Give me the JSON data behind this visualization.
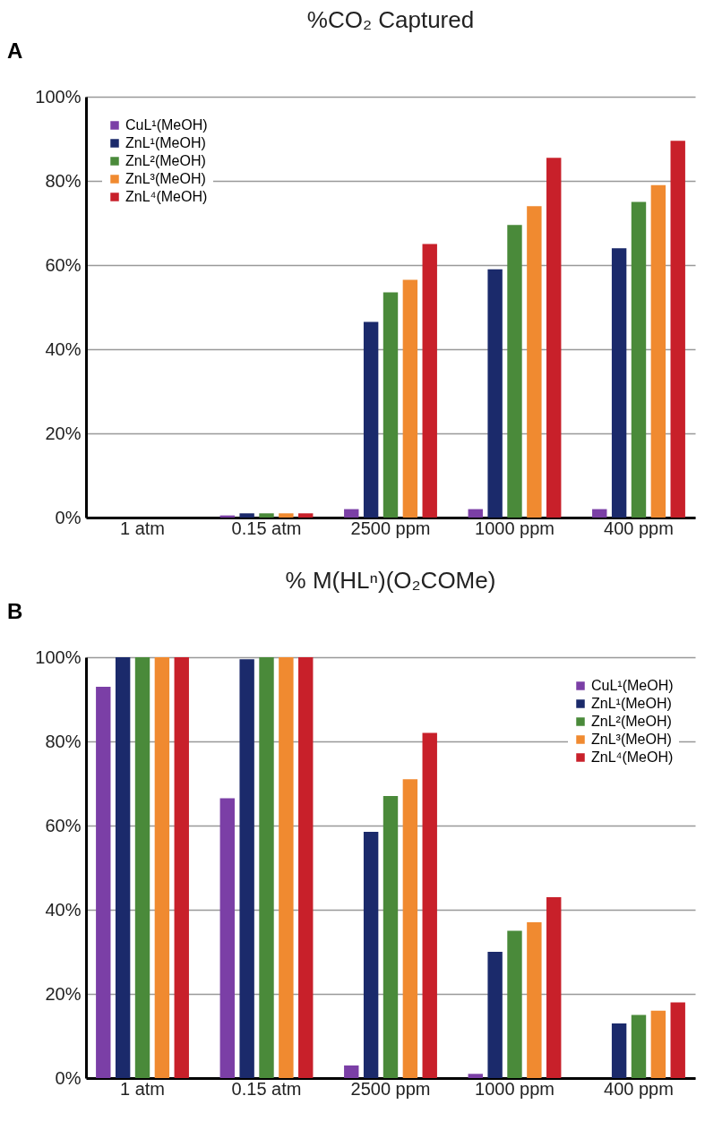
{
  "chart_data": [
    {
      "type": "bar",
      "title": "%CO₂ Captured",
      "annotations": [
        "A"
      ],
      "categories": [
        "1 atm",
        "0.15 atm",
        "2500 ppm",
        "1000 ppm",
        "400 ppm"
      ],
      "series": [
        {
          "name": "CuL¹(MeOH)",
          "color": "#7b3fa6",
          "values": [
            0,
            0.5,
            2,
            2,
            2
          ]
        },
        {
          "name": "ZnL¹(MeOH)",
          "color": "#1b2a6b",
          "values": [
            0,
            1,
            46.5,
            59,
            64
          ]
        },
        {
          "name": "ZnL²(MeOH)",
          "color": "#4a8a3a",
          "values": [
            0,
            1,
            53.5,
            69.5,
            75
          ]
        },
        {
          "name": "ZnL³(MeOH)",
          "color": "#f08a30",
          "values": [
            0,
            1,
            56.5,
            74,
            79
          ]
        },
        {
          "name": "ZnL⁴(MeOH)",
          "color": "#c8202a",
          "values": [
            0,
            1,
            65,
            85.5,
            89.5
          ]
        }
      ],
      "ylim": [
        0,
        100
      ],
      "yticks": [
        {
          "value": 0,
          "label": "0%"
        },
        {
          "value": 20,
          "label": "20%"
        },
        {
          "value": 40,
          "label": "40%"
        },
        {
          "value": 60,
          "label": "60%"
        },
        {
          "value": 80,
          "label": "80%"
        },
        {
          "value": 100,
          "label": "100%"
        }
      ],
      "grid": "y",
      "legend": "top left"
    },
    {
      "type": "bar",
      "title": "% M(HLⁿ)(O₂COMe)",
      "annotations": [
        "B"
      ],
      "categories": [
        "1 atm",
        "0.15 atm",
        "2500 ppm",
        "1000 ppm",
        "400 ppm"
      ],
      "series": [
        {
          "name": "CuL¹(MeOH)",
          "color": "#7b3fa6",
          "values": [
            93,
            66.5,
            3,
            1,
            0
          ]
        },
        {
          "name": "ZnL¹(MeOH)",
          "color": "#1b2a6b",
          "values": [
            100,
            99.5,
            58.5,
            30,
            13
          ]
        },
        {
          "name": "ZnL²(MeOH)",
          "color": "#4a8a3a",
          "values": [
            100,
            100,
            67,
            35,
            15
          ]
        },
        {
          "name": "ZnL³(MeOH)",
          "color": "#f08a30",
          "values": [
            100,
            100,
            71,
            37,
            16
          ]
        },
        {
          "name": "ZnL⁴(MeOH)",
          "color": "#c8202a",
          "values": [
            100,
            100,
            82,
            43,
            18
          ]
        }
      ],
      "ylim": [
        0,
        100
      ],
      "yticks": [
        {
          "value": 0,
          "label": "0%"
        },
        {
          "value": 20,
          "label": "20%"
        },
        {
          "value": 40,
          "label": "40%"
        },
        {
          "value": 60,
          "label": "60%"
        },
        {
          "value": 80,
          "label": "80%"
        },
        {
          "value": 100,
          "label": "100%"
        }
      ],
      "grid": "y",
      "legend": "top right"
    }
  ]
}
